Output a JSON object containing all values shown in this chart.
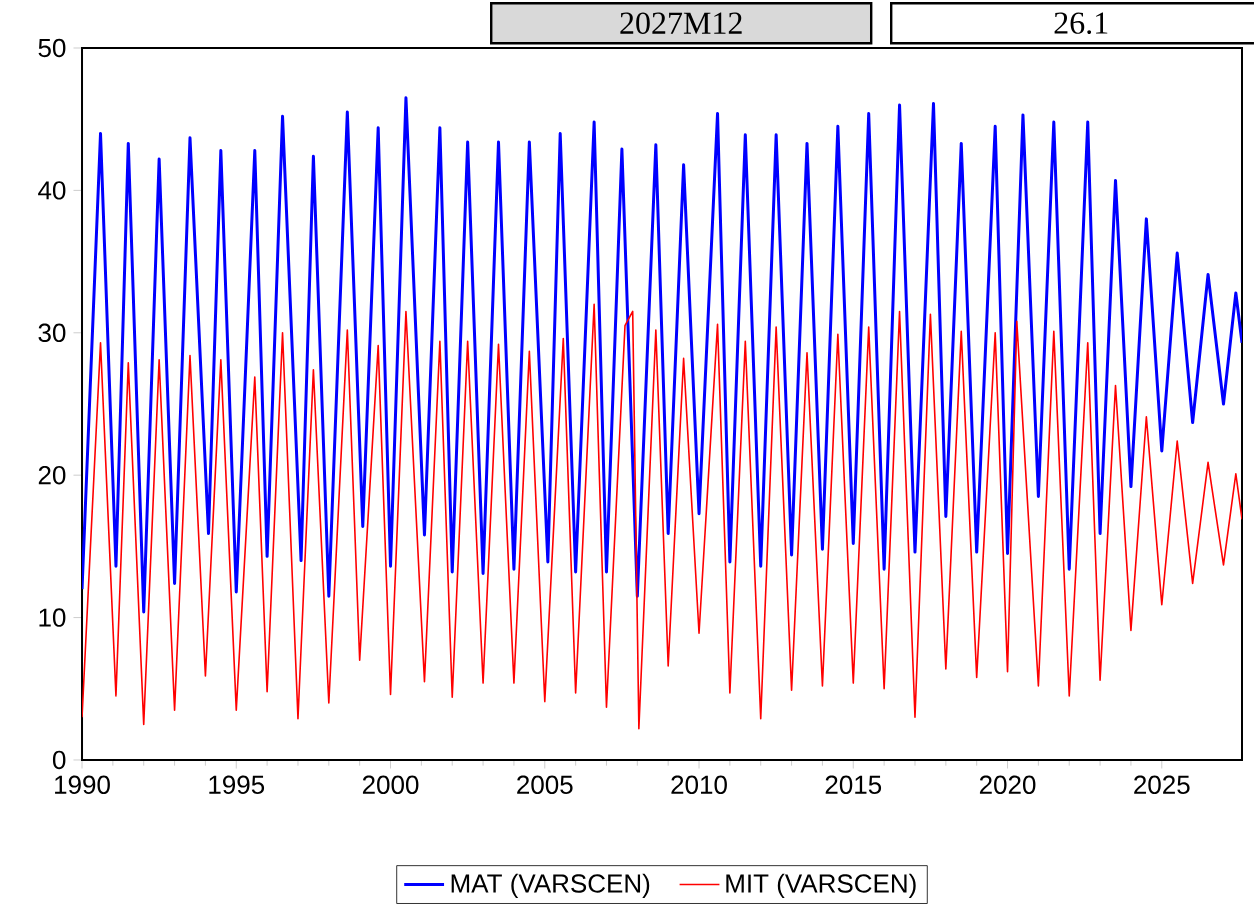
{
  "chart_data": {
    "type": "line",
    "xlim": [
      1990,
      2027.6
    ],
    "ylim": [
      0,
      50
    ],
    "xticks": [
      1990,
      1995,
      2000,
      2005,
      2010,
      2015,
      2020,
      2025
    ],
    "yticks": [
      0,
      10,
      20,
      30,
      40,
      50
    ],
    "legend": "bottom",
    "annotations": [
      "2027M12",
      "26.1"
    ],
    "series": [
      {
        "name": "MAT (VARSCEN)",
        "color": "#0000ff",
        "x": [
          1990.0,
          1990.6,
          1991.1,
          1991.5,
          1992.0,
          1992.5,
          1993.0,
          1993.5,
          1994.1,
          1994.5,
          1995.0,
          1995.6,
          1996.0,
          1996.5,
          1997.1,
          1997.5,
          1998.0,
          1998.6,
          1999.1,
          1999.6,
          2000.0,
          2000.5,
          2001.1,
          2001.6,
          2002.0,
          2002.5,
          2003.0,
          2003.5,
          2004.0,
          2004.5,
          2005.1,
          2005.5,
          2006.0,
          2006.6,
          2007.0,
          2007.5,
          2008.0,
          2008.6,
          2009.0,
          2009.5,
          2010.0,
          2010.6,
          2011.0,
          2011.5,
          2012.0,
          2012.5,
          2013.0,
          2013.5,
          2014.0,
          2014.5,
          2015.0,
          2015.5,
          2016.0,
          2016.5,
          2017.0,
          2017.6,
          2018.0,
          2018.5,
          2019.0,
          2019.6,
          2020.0,
          2020.5,
          2021.0,
          2021.5,
          2022.0,
          2022.6,
          2023.0,
          2023.5,
          2024.0,
          2024.5,
          2025.0,
          2025.5,
          2026.0,
          2026.5,
          2027.0,
          2027.4,
          2027.6
        ],
        "values": [
          12.0,
          44.0,
          13.6,
          43.3,
          10.4,
          42.2,
          12.4,
          43.7,
          15.9,
          42.8,
          11.8,
          42.8,
          14.3,
          45.2,
          14.0,
          42.4,
          11.5,
          45.5,
          16.4,
          44.4,
          13.6,
          46.5,
          15.8,
          44.4,
          13.2,
          43.4,
          13.1,
          43.4,
          13.4,
          43.4,
          13.9,
          44.0,
          13.2,
          44.8,
          13.2,
          42.9,
          11.5,
          43.2,
          15.9,
          41.8,
          17.3,
          45.4,
          13.9,
          43.9,
          13.6,
          43.9,
          14.4,
          43.3,
          14.8,
          44.5,
          15.2,
          45.4,
          13.4,
          46.0,
          14.6,
          46.1,
          17.1,
          43.3,
          14.6,
          44.5,
          14.5,
          45.3,
          18.5,
          44.8,
          13.4,
          44.8,
          15.9,
          40.7,
          19.2,
          38.0,
          21.7,
          35.6,
          23.7,
          34.1,
          25.0,
          32.8,
          29.3
        ]
      },
      {
        "name": "MIT (VARSCEN)",
        "color": "#ff0000",
        "x": [
          1990.0,
          1990.6,
          1991.1,
          1991.5,
          1992.0,
          1992.5,
          1993.0,
          1993.5,
          1994.0,
          1994.5,
          1995.0,
          1995.6,
          1996.0,
          1996.5,
          1997.0,
          1997.5,
          1998.0,
          1998.6,
          1999.0,
          1999.6,
          2000.0,
          2000.5,
          2001.1,
          2001.6,
          2002.0,
          2002.5,
          2003.0,
          2003.5,
          2004.0,
          2004.5,
          2005.0,
          2005.6,
          2006.0,
          2006.6,
          2007.0,
          2007.6,
          2007.85,
          2008.05,
          2008.6,
          2009.0,
          2009.5,
          2010.0,
          2010.6,
          2011.0,
          2011.5,
          2012.0,
          2012.5,
          2013.0,
          2013.5,
          2014.0,
          2014.5,
          2015.0,
          2015.5,
          2016.0,
          2016.5,
          2017.0,
          2017.5,
          2018.0,
          2018.5,
          2019.0,
          2019.6,
          2020.0,
          2020.3,
          2021.0,
          2021.5,
          2022.0,
          2022.6,
          2023.0,
          2023.5,
          2024.0,
          2024.5,
          2025.0,
          2025.5,
          2026.0,
          2026.5,
          2027.0,
          2027.4,
          2027.6
        ],
        "values": [
          3.0,
          29.3,
          4.5,
          27.9,
          2.5,
          28.1,
          3.5,
          28.4,
          5.9,
          28.1,
          3.5,
          26.9,
          4.8,
          30.0,
          2.9,
          27.4,
          4.0,
          30.2,
          7.0,
          29.1,
          4.6,
          31.5,
          5.5,
          29.4,
          4.4,
          29.4,
          5.4,
          29.2,
          5.4,
          28.7,
          4.1,
          29.6,
          4.7,
          32.0,
          3.7,
          30.5,
          31.5,
          2.2,
          30.2,
          6.6,
          28.2,
          8.9,
          30.6,
          4.7,
          29.4,
          2.9,
          30.4,
          4.9,
          28.6,
          5.2,
          29.9,
          5.4,
          30.4,
          5.0,
          31.5,
          3.0,
          31.3,
          6.4,
          30.1,
          5.8,
          30.0,
          6.2,
          30.8,
          5.2,
          30.1,
          4.5,
          29.3,
          5.6,
          26.3,
          9.1,
          24.1,
          10.9,
          22.4,
          12.4,
          20.9,
          13.7,
          20.1,
          16.9
        ]
      }
    ]
  }
}
